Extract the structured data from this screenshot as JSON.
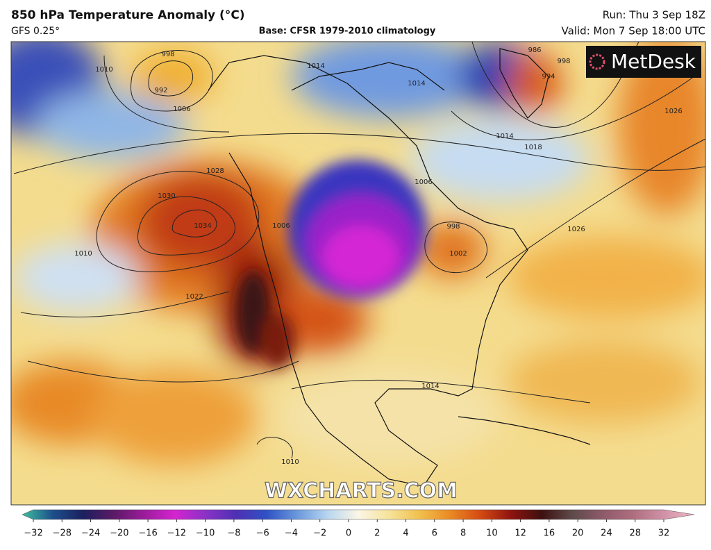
{
  "header": {
    "title": "850 hPa Temperature Anomaly (°C)",
    "model": "GFS 0.25°",
    "base": "Base: CFSR 1979-2010 climatology",
    "run": "Run: Thu 3 Sep 18Z",
    "valid": "Valid: Mon 7 Sep 18:00 UTC"
  },
  "logo": "MetDesk",
  "watermark": "WXCHARTS.COM",
  "isobar_labels": [
    998,
    992,
    1006,
    1010,
    1014,
    1010,
    1028,
    1030,
    1034,
    1022,
    1014,
    1006,
    1006,
    998,
    1002,
    1014,
    1018,
    986,
    994,
    998,
    1026,
    1026,
    1014,
    1010
  ],
  "colorbar": {
    "ticks": [
      {
        "value": -32,
        "label": "−32"
      },
      {
        "value": -28,
        "label": "−28"
      },
      {
        "value": -24,
        "label": "−24"
      },
      {
        "value": -20,
        "label": "−20"
      },
      {
        "value": -16,
        "label": "−16"
      },
      {
        "value": -12,
        "label": "−12"
      },
      {
        "value": -10,
        "label": "−10"
      },
      {
        "value": -8,
        "label": "−8"
      },
      {
        "value": -6,
        "label": "−6"
      },
      {
        "value": -4,
        "label": "−4"
      },
      {
        "value": -2,
        "label": "−2"
      },
      0,
      2,
      4,
      6,
      8,
      10,
      12,
      16,
      20,
      24,
      28,
      32
    ],
    "colors": [
      "#3fbf9f",
      "#1d4f8c",
      "#1c1f5e",
      "#5b1a66",
      "#9c1c9c",
      "#d424d0",
      "#8a32c6",
      "#4e30b4",
      "#2f52c4",
      "#6a98dc",
      "#b8d6f0",
      "#fbf6e6",
      "#f6e39a",
      "#f1c04e",
      "#ea8a24",
      "#d44a12",
      "#8e1410",
      "#3e1010",
      "#5e4a4a",
      "#8e5a6a",
      "#ae6e80",
      "#d092a6",
      "#f2b6c8"
    ]
  }
}
